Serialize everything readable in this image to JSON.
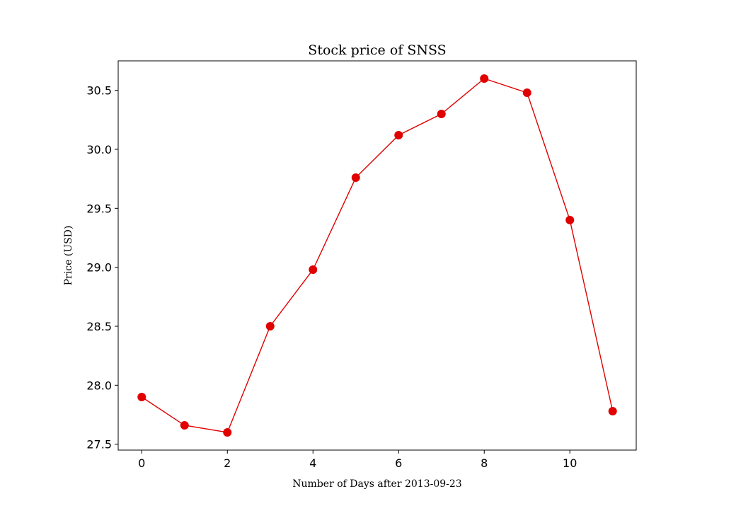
{
  "chart_data": {
    "type": "line",
    "title": "Stock price of SNSS",
    "xlabel": "Number of Days after 2013-09-23",
    "ylabel": "Price (USD)",
    "x": [
      0,
      1,
      2,
      3,
      4,
      5,
      6,
      7,
      8,
      9,
      10,
      11
    ],
    "series": [
      {
        "values": [
          27.9,
          27.66,
          27.6,
          28.5,
          28.98,
          29.76,
          30.12,
          30.3,
          30.6,
          30.48,
          29.4,
          27.78
        ],
        "color": "#e00000",
        "marker": "circle"
      }
    ],
    "xlim": [
      -0.55,
      11.55
    ],
    "ylim": [
      27.45,
      30.75
    ],
    "x_ticks": [
      0,
      2,
      4,
      6,
      8,
      10
    ],
    "x_tick_labels": [
      "0",
      "2",
      "4",
      "6",
      "8",
      "10"
    ],
    "y_ticks": [
      27.5,
      28.0,
      28.5,
      29.0,
      29.5,
      30.0,
      30.5
    ],
    "y_tick_labels": [
      "27.5",
      "28.0",
      "28.5",
      "29.0",
      "29.5",
      "30.0",
      "30.5"
    ],
    "grid": false,
    "legend": "none"
  }
}
